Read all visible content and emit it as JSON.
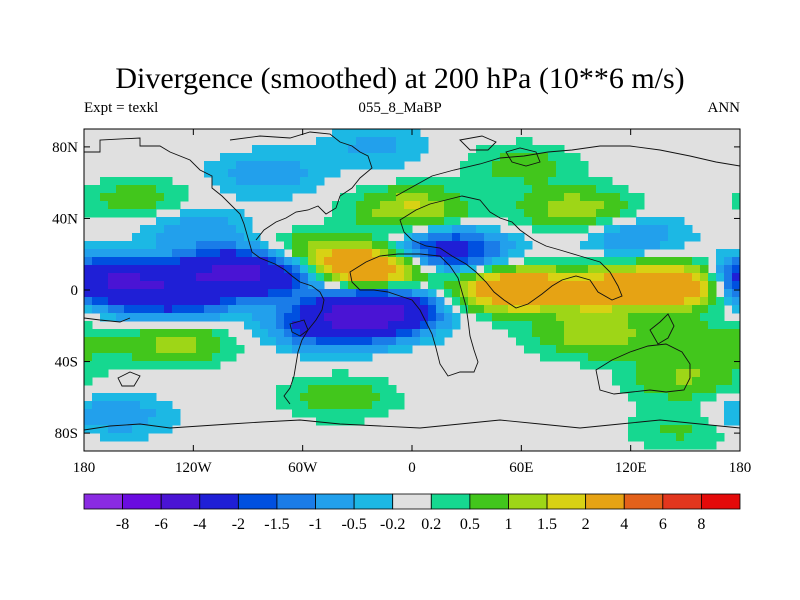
{
  "header": {
    "title": "Divergence (smoothed) at 200 hPa (10**6 m/s)",
    "left_label": "Expt = texkl",
    "center_label": "055_8_MaBP",
    "right_label": "ANN"
  },
  "chart_data": {
    "type": "heatmap",
    "title": "Divergence (smoothed) at 200 hPa (10**6 m/s)",
    "xlabel": "",
    "ylabel": "",
    "xlim": [
      -180,
      180
    ],
    "ylim": [
      -90,
      90
    ],
    "x_ticks": [
      -180,
      -120,
      -60,
      0,
      60,
      120,
      180
    ],
    "x_tick_labels": [
      "180",
      "120W",
      "60W",
      "0",
      "60E",
      "120E",
      "180"
    ],
    "y_ticks": [
      80,
      40,
      0,
      -40,
      -80
    ],
    "y_tick_labels": [
      "80N",
      "40N",
      "0",
      "40S",
      "80S"
    ],
    "colorbar": {
      "levels": [
        -8,
        -6,
        -4,
        -2,
        -1.5,
        -1,
        -0.5,
        -0.2,
        0.2,
        0.5,
        1,
        1.5,
        2,
        4,
        6,
        8
      ],
      "labels": [
        "-8",
        "-6",
        "-4",
        "-2",
        "-1.5",
        "-1",
        "-0.5",
        "-0.2",
        "0.2",
        "0.5",
        "1",
        "1.5",
        "2",
        "4",
        "6",
        "8"
      ],
      "colors": [
        "#8a2be2",
        "#6a0ce0",
        "#4a14d4",
        "#1f1fd6",
        "#0050e0",
        "#1a7ce8",
        "#22a0ec",
        "#1cb8e4",
        "#e0e0e0",
        "#16d890",
        "#42c61c",
        "#9ed617",
        "#d8d214",
        "#e6a314",
        "#e3611a",
        "#e2361e",
        "#e40a0a"
      ]
    },
    "fields": [
      {
        "lon": -160,
        "lat": 5,
        "value": -3.5
      },
      {
        "lon": -130,
        "lat": -5,
        "value": -2.2
      },
      {
        "lon": -100,
        "lat": 10,
        "value": -4.0
      },
      {
        "lon": -70,
        "lat": 8,
        "value": -1.8
      },
      {
        "lon": -25,
        "lat": 12,
        "value": 3.5
      },
      {
        "lon": -20,
        "lat": -12,
        "value": -5.0
      },
      {
        "lon": -45,
        "lat": -20,
        "value": -2.4
      },
      {
        "lon": -55,
        "lat": 20,
        "value": 1.2
      },
      {
        "lon": 20,
        "lat": 22,
        "value": -2.6
      },
      {
        "lon": 55,
        "lat": 0,
        "value": 3.2
      },
      {
        "lon": 105,
        "lat": 0,
        "value": 2.2
      },
      {
        "lon": 150,
        "lat": 3,
        "value": 3.8
      },
      {
        "lon": 175,
        "lat": 5,
        "value": -1.6
      },
      {
        "lon": 100,
        "lat": -25,
        "value": 1.4
      },
      {
        "lon": 160,
        "lat": -30,
        "value": 0.9
      },
      {
        "lon": -130,
        "lat": -30,
        "value": 1.2
      },
      {
        "lon": 150,
        "lat": -50,
        "value": 1.0
      },
      {
        "lon": 0,
        "lat": 45,
        "value": 1.6
      },
      {
        "lon": 90,
        "lat": 45,
        "value": 1.4
      },
      {
        "lon": -150,
        "lat": 50,
        "value": 0.8
      },
      {
        "lon": -120,
        "lat": 35,
        "value": -0.8
      },
      {
        "lon": 120,
        "lat": 30,
        "value": -0.9
      },
      {
        "lon": -80,
        "lat": 65,
        "value": -0.8
      },
      {
        "lon": 60,
        "lat": 70,
        "value": 0.7
      },
      {
        "lon": -40,
        "lat": -60,
        "value": 0.8
      },
      {
        "lon": -165,
        "lat": -70,
        "value": -0.9
      },
      {
        "lon": 150,
        "lat": -78,
        "value": 0.6
      },
      {
        "lon": -20,
        "lat": 80,
        "value": -0.6
      }
    ]
  }
}
